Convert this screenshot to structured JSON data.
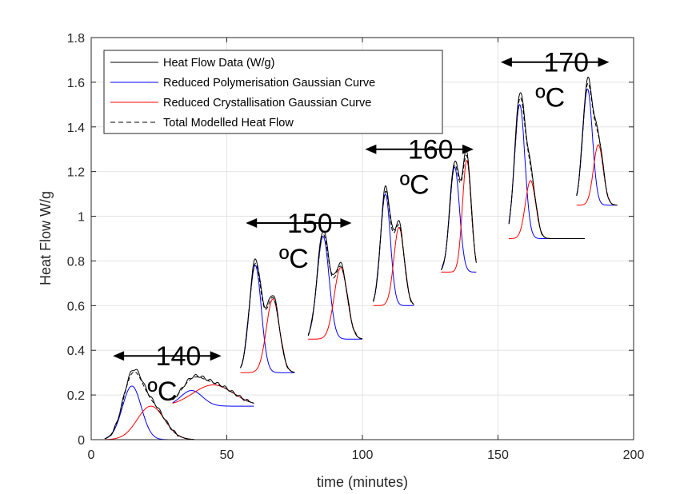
{
  "chart_data": {
    "type": "line",
    "xlabel": "time (minutes)",
    "ylabel": "Heat Flow W/g",
    "xlim": [
      0,
      200
    ],
    "ylim": [
      0,
      1.8
    ],
    "xticks": [
      "0",
      "50",
      "100",
      "150",
      "200"
    ],
    "yticks": [
      "0",
      "0.2",
      "0.4",
      "0.6",
      "0.8",
      "1",
      "1.2",
      "1.4",
      "1.6",
      "1.8"
    ],
    "grid": true,
    "legend_position": "top-left",
    "colors": {
      "heat_flow": "#000000",
      "polymerisation": "#0000ff",
      "crystallisation": "#ff0000",
      "total": "#000000"
    },
    "series": [
      {
        "name": "Heat Flow Data (W/g)",
        "style": "solid",
        "color": "#000000"
      },
      {
        "name": "Reduced Polymerisation Gaussian Curve",
        "style": "solid",
        "color": "#0000ff"
      },
      {
        "name": "Reduced Crystallisation Gaussian Curve",
        "style": "solid",
        "color": "#ff0000"
      },
      {
        "name": "Total Modelled Heat Flow",
        "style": "dashed",
        "color": "#000000"
      }
    ],
    "runs": [
      {
        "temperature": "140",
        "baseline": 0.0,
        "x_start": 5,
        "x_end": 38,
        "poly": {
          "center": 15,
          "amplitude": 0.24,
          "sigma": 3.5
        },
        "cryst": {
          "center": 22,
          "amplitude": 0.15,
          "sigma": 5.0
        }
      },
      {
        "temperature": "140",
        "baseline": 0.15,
        "x_start": 30,
        "x_end": 60,
        "poly": {
          "center": 37,
          "amplitude": 0.07,
          "sigma": 4.0
        },
        "cryst": {
          "center": 45,
          "amplitude": 0.095,
          "sigma": 7.5
        }
      },
      {
        "temperature": "150",
        "baseline": 0.3,
        "x_start": 55,
        "x_end": 75,
        "poly": {
          "center": 60.5,
          "amplitude": 0.48,
          "sigma": 2.2
        },
        "cryst": {
          "center": 67,
          "amplitude": 0.33,
          "sigma": 2.4
        }
      },
      {
        "temperature": "150",
        "baseline": 0.45,
        "x_start": 80,
        "x_end": 100,
        "poly": {
          "center": 85.5,
          "amplitude": 0.46,
          "sigma": 2.2
        },
        "cryst": {
          "center": 92,
          "amplitude": 0.32,
          "sigma": 2.4
        }
      },
      {
        "temperature": "160",
        "baseline": 0.6,
        "x_start": 104,
        "x_end": 119,
        "poly": {
          "center": 108.5,
          "amplitude": 0.5,
          "sigma": 1.8
        },
        "cryst": {
          "center": 113.5,
          "amplitude": 0.35,
          "sigma": 1.9
        }
      },
      {
        "temperature": "160",
        "baseline": 0.75,
        "x_start": 129,
        "x_end": 142,
        "poly": {
          "center": 134,
          "amplitude": 0.47,
          "sigma": 1.8
        },
        "cryst": {
          "center": 138.5,
          "amplitude": 0.5,
          "sigma": 1.6
        }
      },
      {
        "temperature": "170",
        "baseline": 0.9,
        "x_start": 154,
        "x_end": 182,
        "poly": {
          "center": 158,
          "amplitude": 0.6,
          "sigma": 1.9
        },
        "cryst": {
          "center": 162,
          "amplitude": 0.26,
          "sigma": 1.9
        }
      },
      {
        "temperature": "170",
        "baseline": 1.05,
        "x_start": 179,
        "x_end": 194,
        "poly": {
          "center": 183,
          "amplitude": 0.52,
          "sigma": 1.8
        },
        "cryst": {
          "center": 187,
          "amplitude": 0.27,
          "sigma": 1.8
        }
      }
    ],
    "annotations": [
      {
        "temperature": "140",
        "label_line1": "140",
        "label_line2": "ºC",
        "arrow_x": [
          8,
          48
        ],
        "arrow_y": 0.375
      },
      {
        "temperature": "150",
        "label_line1": "150",
        "label_line2": "ºC",
        "arrow_x": [
          57,
          96
        ],
        "arrow_y": 0.97
      },
      {
        "temperature": "160",
        "label_line1": "160",
        "label_line2": "ºC",
        "arrow_x": [
          101,
          141
        ],
        "arrow_y": 1.3
      },
      {
        "temperature": "170",
        "label_line1": "170",
        "label_line2": "ºC",
        "arrow_x": [
          151,
          191
        ],
        "arrow_y": 1.69
      }
    ]
  }
}
